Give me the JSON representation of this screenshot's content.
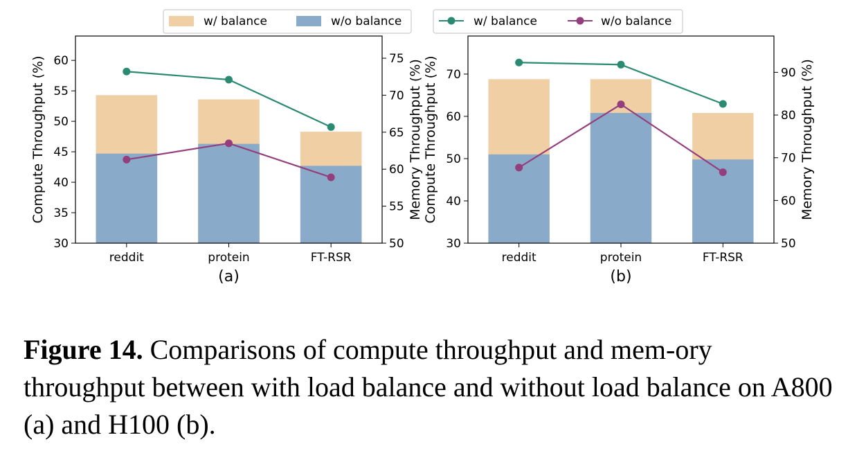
{
  "chart_data": [
    {
      "type": "bar+line",
      "subtitle": "(a)",
      "categories": [
        "reddit",
        "protein",
        "FT-RSR"
      ],
      "ylabel_left": "Compute Throughput (%)",
      "ylabel_right": "Memory Throughput (%)",
      "ylim_left": [
        30,
        64
      ],
      "ylim_right": [
        50,
        78
      ],
      "yticks_left": [
        30,
        35,
        40,
        45,
        50,
        55,
        60
      ],
      "yticks_right": [
        50,
        55,
        60,
        65,
        70,
        75
      ],
      "bar_series": [
        {
          "name": "w/ balance",
          "color": "#f0cfa4",
          "values": [
            54.3,
            53.6,
            48.3
          ]
        },
        {
          "name": "w/o balance",
          "color": "#89aac8",
          "values": [
            44.7,
            46.3,
            42.7
          ]
        }
      ],
      "line_series": [
        {
          "name": "w/ balance",
          "color": "#2b8a72",
          "values": [
            73.2,
            72.1,
            65.7
          ]
        },
        {
          "name": "w/o balance",
          "color": "#943e7d",
          "values": [
            61.3,
            63.5,
            58.9
          ]
        }
      ]
    },
    {
      "type": "bar+line",
      "subtitle": "(b)",
      "categories": [
        "reddit",
        "protein",
        "FT-RSR"
      ],
      "ylabel_left": "Compute Throughput (%)",
      "ylabel_right": "Memory Throughput (%)",
      "ylim_left": [
        30,
        79
      ],
      "ylim_right": [
        50,
        98.5
      ],
      "yticks_left": [
        30,
        40,
        50,
        60,
        70
      ],
      "yticks_right": [
        50,
        60,
        70,
        80,
        90
      ],
      "bar_series": [
        {
          "name": "w/ balance",
          "color": "#f0cfa4",
          "values": [
            68.8,
            68.8,
            60.8
          ]
        },
        {
          "name": "w/o balance",
          "color": "#89aac8",
          "values": [
            51.0,
            60.8,
            49.8
          ]
        }
      ],
      "line_series": [
        {
          "name": "w/ balance",
          "color": "#2b8a72",
          "values": [
            92.3,
            91.8,
            82.6
          ]
        },
        {
          "name": "w/o balance",
          "color": "#943e7d",
          "values": [
            67.7,
            82.5,
            66.6
          ]
        }
      ]
    }
  ],
  "legend_bars": [
    "w/ balance",
    "w/o balance"
  ],
  "legend_lines": [
    "w/ balance",
    "w/o balance"
  ],
  "caption": {
    "label": "Figure 14.",
    "text": " Comparisons of compute throughput and mem-ory throughput between with load balance and without load balance on A800 (a) and H100 (b)."
  }
}
